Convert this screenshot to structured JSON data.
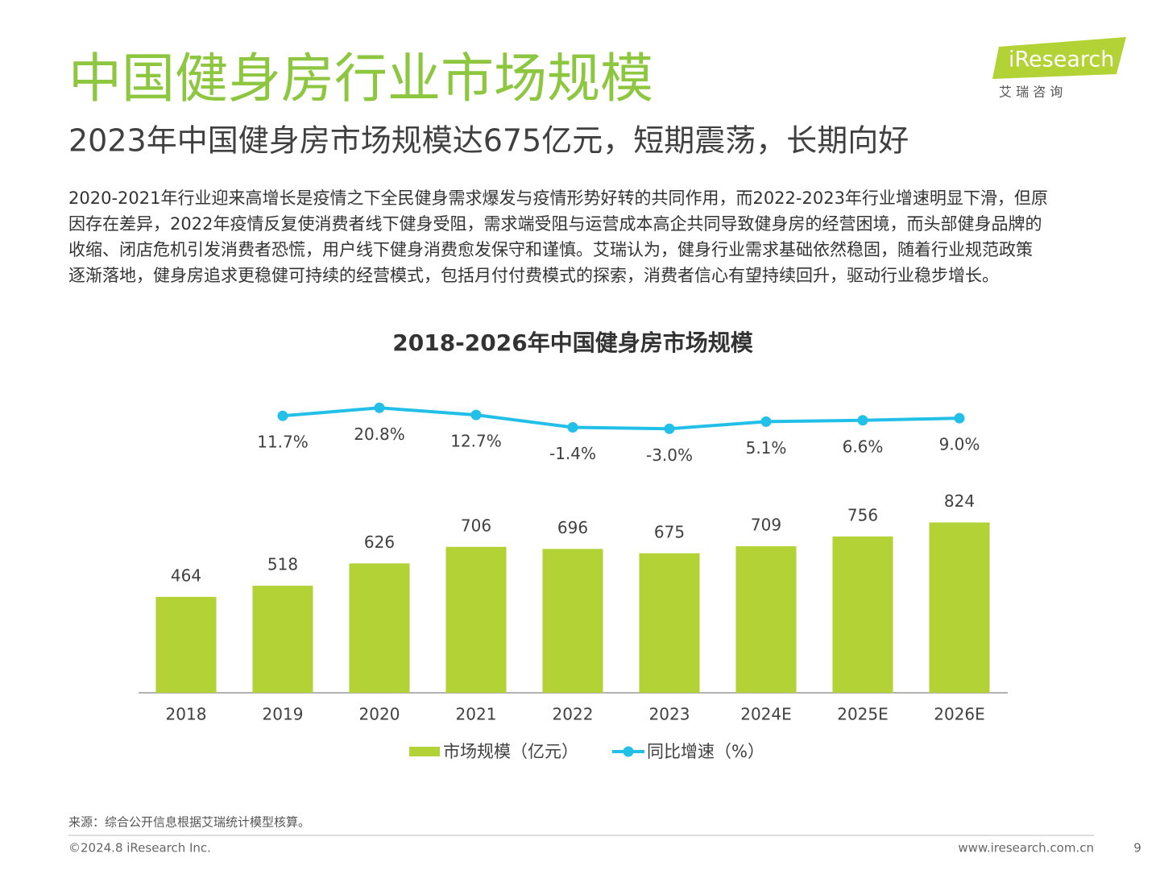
{
  "header": {
    "title": "中国健身房行业市场规模",
    "subtitle": "2023年中国健身房市场规模达675亿元，短期震荡，长期向好"
  },
  "logo": {
    "name": "iResearch",
    "cn": "艾  瑞  咨  询"
  },
  "paragraph": [
    "2020-2021年行业迎来高增长是疫情之下全民健身需求爆发与疫情形势好转的共同作用，而2022-2023年行业增速明显下滑，但原",
    "因存在差异，2022年疫情反复使消费者线下健身受阻，需求端受阻与运营成本高企共同导致健身房的经营困境，而头部健身品牌的",
    "收缩、闭店危机引发消费者恐慌，用户线下健身消费愈发保守和谨慎。艾瑞认为，健身行业需求基础依然稳固，随着行业规范政策",
    "逐渐落地，健身房追求更稳健可持续的经营模式，包括月付付费模式的探索，消费者信心有望持续回升，驱动行业稳步增长。"
  ],
  "chart_data": {
    "type": "bar-line",
    "title": "2018-2026年中国健身房市场规模",
    "categories": [
      "2018",
      "2019",
      "2020",
      "2021",
      "2022",
      "2023",
      "2024E",
      "2025E",
      "2026E"
    ],
    "series": [
      {
        "name": "市场规模（亿元）",
        "type": "bar",
        "color": "#b2d235",
        "values": [
          464,
          518,
          626,
          706,
          696,
          675,
          709,
          756,
          824
        ]
      },
      {
        "name": "同比增速（%）",
        "type": "line",
        "axis": "y2",
        "color": "#22bfe8",
        "values": [
          null,
          11.7,
          20.8,
          12.7,
          -1.4,
          -3.0,
          5.1,
          6.6,
          9.0
        ],
        "value_labels": [
          null,
          "11.7%",
          "20.8%",
          "12.7%",
          "-1.4%",
          "-3.0%",
          "5.1%",
          "6.6%",
          "9.0%"
        ]
      }
    ],
    "ylim": [
      0,
      1520
    ],
    "y2lim": [
      -303,
      54
    ],
    "legend": "bottom"
  },
  "footer": {
    "source": "来源：综合公开信息根据艾瑞统计模型核算。",
    "copyright": "©2024.8 iResearch Inc.",
    "website": "www.iresearch.com.cn",
    "page": "9"
  }
}
